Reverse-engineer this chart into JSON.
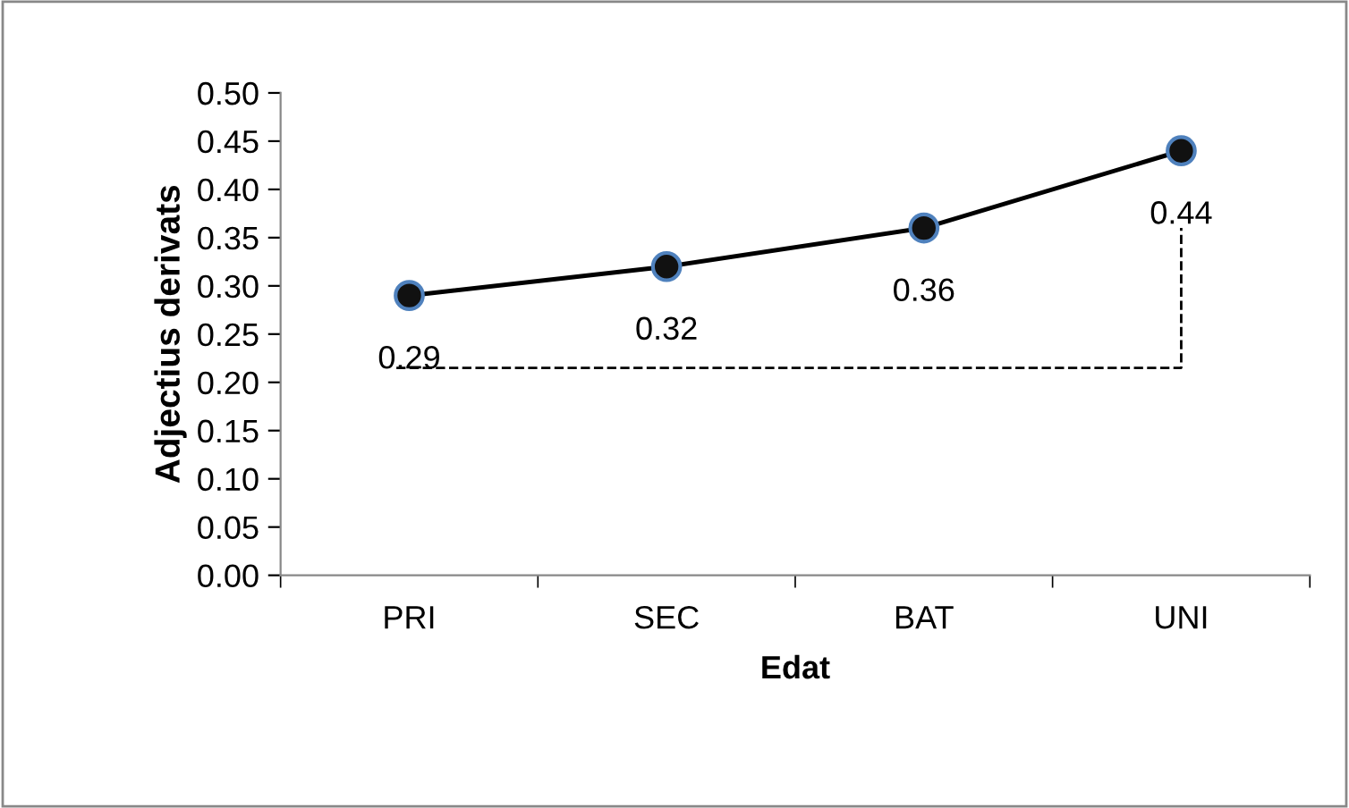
{
  "chart_data": {
    "type": "line",
    "xlabel": "Edat",
    "ylabel": "Adjectius derivats",
    "categories": [
      "PRI",
      "SEC",
      "BAT",
      "UNI"
    ],
    "series": [
      {
        "color": "#000000",
        "values": [
          0.29,
          0.32,
          0.36,
          0.44
        ]
      }
    ],
    "ylim": [
      0,
      0.5
    ],
    "yticks": [
      {
        "value": 0,
        "label": "0.00"
      },
      {
        "value": 0.05,
        "label": "0.05"
      },
      {
        "value": 0.1,
        "label": "0.10"
      },
      {
        "value": 0.15,
        "label": "0.15"
      },
      {
        "value": 0.2,
        "label": "0.20"
      },
      {
        "value": 0.25,
        "label": "0.25"
      },
      {
        "value": 0.3,
        "label": "0.30"
      },
      {
        "value": 0.35,
        "label": "0.35"
      },
      {
        "value": 0.4,
        "label": "0.40"
      },
      {
        "value": 0.45,
        "label": "0.45"
      },
      {
        "value": 0.5,
        "label": "0.50"
      }
    ],
    "marker": "circle",
    "line_style": "solid",
    "grid": false,
    "data_labels": true
  }
}
